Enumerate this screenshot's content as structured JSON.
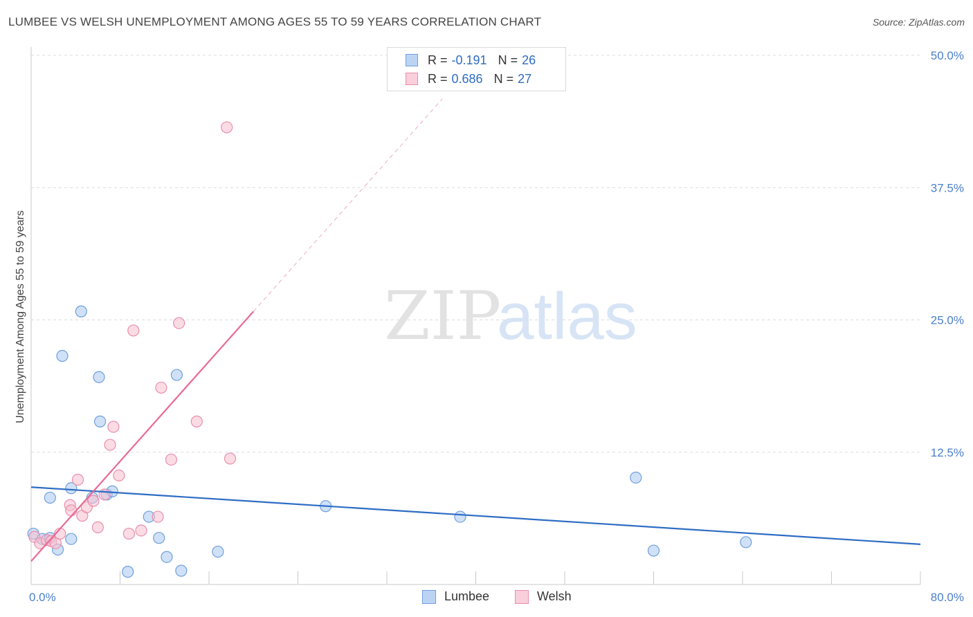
{
  "title": "LUMBEE VS WELSH UNEMPLOYMENT AMONG AGES 55 TO 59 YEARS CORRELATION CHART",
  "source": "Source: ZipAtlas.com",
  "watermark": {
    "zip": "ZIP",
    "atlas": "atlas"
  },
  "colors": {
    "lumbee_fill": "#a9c8f0",
    "lumbee_stroke": "#6f9fdc",
    "lumbee_line": "#2d6cc4",
    "welsh_fill": "#f7bfd0",
    "welsh_stroke": "#e98eab",
    "welsh_line": "#e86a94",
    "tick_text": "#4a7fcb",
    "grid": "#dcdcdc"
  },
  "legend": {
    "lumbee": {
      "r_label": "R =",
      "r_value": "-0.191",
      "n_label": "N =",
      "n_value": "26"
    },
    "welsh": {
      "r_label": "R =",
      "r_value": "0.686",
      "n_label": "N =",
      "n_value": "27"
    }
  },
  "chart_data": {
    "type": "scatter",
    "xlabel": "",
    "ylabel": "Unemployment Among Ages 55 to 59 years",
    "xlim": [
      0,
      80
    ],
    "ylim": [
      0,
      50
    ],
    "x_tick_labels": [
      "0.0%",
      "80.0%"
    ],
    "y_ticks": [
      12.5,
      25.0,
      37.5,
      50.0
    ],
    "y_tick_labels": [
      "12.5%",
      "25.0%",
      "37.5%",
      "50.0%"
    ],
    "grid": "horizontal dashed",
    "legend_position": "top-center",
    "series": [
      {
        "name": "Lumbee",
        "points": [
          [
            0.2,
            4.8
          ],
          [
            1.0,
            4.3
          ],
          [
            1.7,
            4.4
          ],
          [
            2.4,
            3.3
          ],
          [
            1.7,
            8.2
          ],
          [
            2.8,
            21.6
          ],
          [
            3.6,
            4.3
          ],
          [
            3.6,
            9.1
          ],
          [
            4.5,
            25.8
          ],
          [
            5.5,
            8.2
          ],
          [
            6.1,
            19.6
          ],
          [
            6.2,
            15.4
          ],
          [
            6.8,
            8.5
          ],
          [
            7.3,
            8.8
          ],
          [
            8.7,
            1.2
          ],
          [
            10.6,
            6.4
          ],
          [
            11.5,
            4.4
          ],
          [
            12.2,
            2.6
          ],
          [
            13.1,
            19.8
          ],
          [
            13.5,
            1.3
          ],
          [
            16.8,
            3.1
          ],
          [
            26.5,
            7.4
          ],
          [
            38.6,
            6.4
          ],
          [
            54.4,
            10.1
          ],
          [
            56.0,
            3.2
          ],
          [
            64.3,
            4.0
          ]
        ],
        "trend": {
          "x": [
            0,
            80
          ],
          "y": [
            9.2,
            3.8
          ]
        }
      },
      {
        "name": "Welsh",
        "points": [
          [
            0.3,
            4.5
          ],
          [
            0.8,
            3.9
          ],
          [
            1.4,
            4.2
          ],
          [
            1.8,
            4.1
          ],
          [
            2.2,
            3.9
          ],
          [
            2.6,
            4.8
          ],
          [
            3.5,
            7.5
          ],
          [
            3.6,
            7.0
          ],
          [
            4.2,
            9.9
          ],
          [
            4.6,
            6.5
          ],
          [
            5.0,
            7.3
          ],
          [
            5.6,
            7.9
          ],
          [
            6.0,
            5.4
          ],
          [
            6.6,
            8.5
          ],
          [
            7.1,
            13.2
          ],
          [
            7.4,
            14.9
          ],
          [
            7.9,
            10.3
          ],
          [
            8.8,
            4.8
          ],
          [
            9.2,
            24.0
          ],
          [
            9.9,
            5.1
          ],
          [
            11.4,
            6.4
          ],
          [
            11.7,
            18.6
          ],
          [
            12.6,
            11.8
          ],
          [
            13.3,
            24.7
          ],
          [
            14.9,
            15.4
          ],
          [
            17.6,
            43.2
          ],
          [
            17.9,
            11.9
          ]
        ],
        "trend": {
          "x": [
            0,
            20.0
          ],
          "y": [
            2.2,
            25.8
          ]
        },
        "trend_extended": {
          "x": [
            20.0,
            37.0
          ],
          "y": [
            25.8,
            45.9
          ]
        }
      }
    ]
  },
  "bottom_legend": [
    "Lumbee",
    "Welsh"
  ]
}
